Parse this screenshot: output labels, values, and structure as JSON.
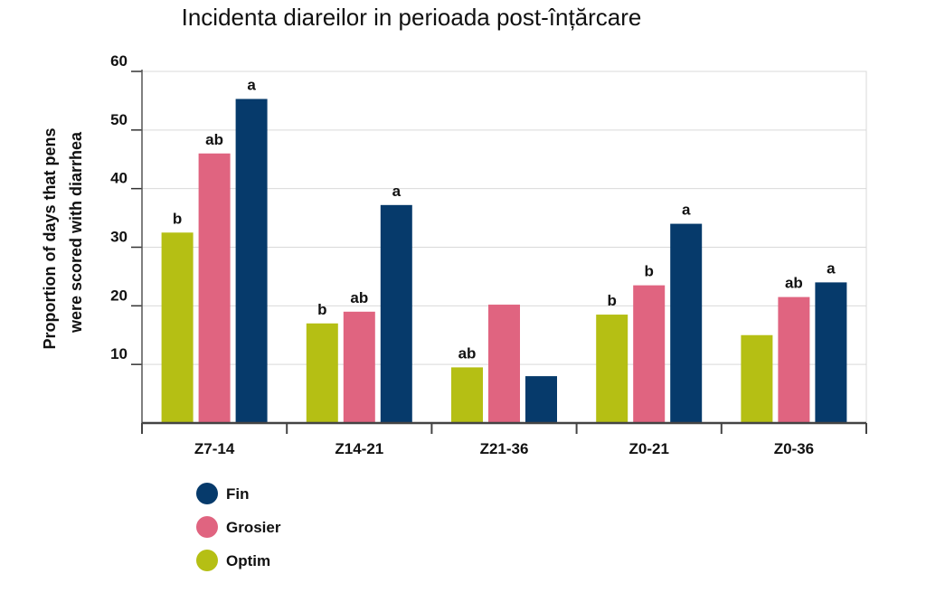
{
  "chart_data": {
    "type": "bar",
    "title": "Incidenta diareilor in perioada post-înțărcare",
    "ylabel_line1": "Proportion of days that pens",
    "ylabel_line2": "were scored with diarrhea",
    "xlabel": "",
    "ylim": [
      0,
      60
    ],
    "yticks": [
      10,
      20,
      30,
      40,
      50,
      60
    ],
    "grid": true,
    "legend_position": "bottom-left",
    "categories": [
      "Z7-14",
      "Z14-21",
      "Z21-36",
      "Z0-21",
      "Z0-36"
    ],
    "series": [
      {
        "name": "Optim",
        "color": "#b5bf14",
        "values": [
          32.5,
          17,
          9.5,
          18.5,
          15
        ],
        "sig": [
          "b",
          "b",
          "ab",
          "b",
          ""
        ]
      },
      {
        "name": "Grosier",
        "color": "#e06480",
        "values": [
          46,
          19,
          20.2,
          23.5,
          21.5
        ],
        "sig": [
          "ab",
          "ab",
          "",
          "b",
          "ab"
        ]
      },
      {
        "name": "Fin",
        "color": "#063a6b",
        "values": [
          55.3,
          37.2,
          8,
          34,
          24
        ],
        "sig": [
          "a",
          "a",
          "",
          "a",
          "a"
        ]
      }
    ],
    "legend_order": [
      "Fin",
      "Grosier",
      "Optim"
    ]
  }
}
